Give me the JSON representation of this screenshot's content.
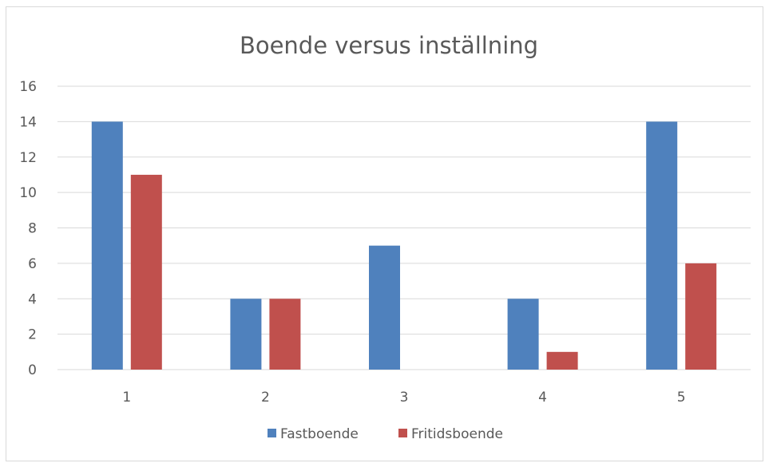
{
  "chart_data": {
    "type": "bar",
    "title": "Boende versus inställning",
    "xlabel": "",
    "ylabel": "",
    "categories": [
      "1",
      "2",
      "3",
      "4",
      "5"
    ],
    "series": [
      {
        "name": "Fastboende",
        "color": "#4f81bd",
        "values": [
          14,
          4,
          7,
          4,
          14
        ]
      },
      {
        "name": "Fritidsboende",
        "color": "#c0504d",
        "values": [
          11,
          4,
          0,
          1,
          6
        ]
      }
    ],
    "ylim": [
      0,
      16
    ],
    "yticks": [
      "0",
      "2",
      "4",
      "6",
      "8",
      "10",
      "12",
      "14",
      "16"
    ],
    "grid": true,
    "legend_position": "bottom"
  }
}
